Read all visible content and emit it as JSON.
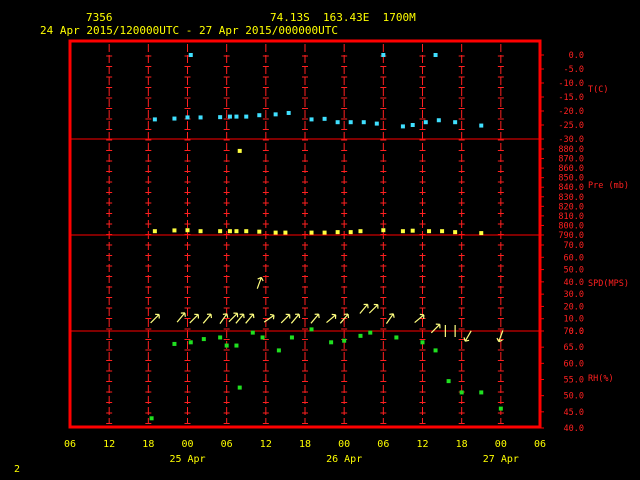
{
  "header": {
    "station_id": "7356",
    "location": "74.13S  163.43E  1700M",
    "period": "24 Apr 2015/120000UTC - 27 Apr 2015/000000UTC"
  },
  "page_number": "2",
  "colors": {
    "frame": "#ff0000",
    "grid": "#ff2020",
    "axis_text": "#ffff00",
    "temperature": "#40e0ff",
    "pressure": "#ffff40",
    "wind": "#ffff80",
    "humidity": "#20e020"
  },
  "chart_data": {
    "type": "scatter",
    "x_unit": "hours since 24 Apr 2015 06 UTC",
    "x_range": [
      0,
      72
    ],
    "x_tick_labels": [
      "06",
      "12",
      "18",
      "00",
      "06",
      "12",
      "18",
      "00",
      "06",
      "12",
      "18",
      "00",
      "06"
    ],
    "date_labels": [
      {
        "hour": 18,
        "text": "25 Apr"
      },
      {
        "hour": 42,
        "text": "26 Apr"
      },
      {
        "hour": 66,
        "text": "27 Apr"
      }
    ],
    "panels": [
      {
        "key": "temp",
        "label": "T(C)",
        "range": [
          -30,
          0
        ],
        "type": "scatter",
        "ticks": [
          "0.0",
          "-5.0",
          "-10.0",
          "-15.0",
          "-20.0",
          "-25.0",
          "-30.0"
        ],
        "points": [
          [
            13,
            -23
          ],
          [
            16,
            -22.7
          ],
          [
            18,
            -22.3
          ],
          [
            18.5,
            0
          ],
          [
            20,
            -22.3
          ],
          [
            23,
            -22.2
          ],
          [
            24.5,
            -22
          ],
          [
            25.5,
            -22
          ],
          [
            27,
            -22
          ],
          [
            29,
            -21.5
          ],
          [
            31.5,
            -21.2
          ],
          [
            33.5,
            -20.7
          ],
          [
            37,
            -23
          ],
          [
            39,
            -22.8
          ],
          [
            41,
            -24
          ],
          [
            43,
            -24
          ],
          [
            45,
            -24
          ],
          [
            47,
            -24.5
          ],
          [
            48,
            0
          ],
          [
            51,
            -25.5
          ],
          [
            52.5,
            -25
          ],
          [
            54.5,
            -24
          ],
          [
            56,
            0
          ],
          [
            56.5,
            -23.3
          ],
          [
            59,
            -24
          ],
          [
            63,
            -25.2
          ]
        ]
      },
      {
        "key": "pres",
        "label": "Pre (mb)",
        "range": [
          790,
          880
        ],
        "type": "scatter",
        "ticks": [
          "880.0",
          "870.0",
          "860.0",
          "850.0",
          "840.0",
          "830.0",
          "820.0",
          "810.0",
          "800.0",
          "790.0"
        ],
        "points": [
          [
            13,
            794
          ],
          [
            16,
            794.8
          ],
          [
            18,
            795
          ],
          [
            20,
            794
          ],
          [
            23,
            794
          ],
          [
            24.5,
            794
          ],
          [
            25.5,
            794
          ],
          [
            26,
            878
          ],
          [
            27,
            794
          ],
          [
            29,
            793.5
          ],
          [
            31.5,
            792.5
          ],
          [
            33,
            792.5
          ],
          [
            37,
            792.5
          ],
          [
            39,
            792.5
          ],
          [
            41,
            793
          ],
          [
            43,
            793
          ],
          [
            44.5,
            794
          ],
          [
            48,
            795
          ],
          [
            51,
            794
          ],
          [
            52.5,
            794.5
          ],
          [
            55,
            794
          ],
          [
            57,
            794
          ],
          [
            59,
            793
          ],
          [
            63,
            792
          ]
        ]
      },
      {
        "key": "wind",
        "label": "SPD(MPS)",
        "range": [
          0,
          70
        ],
        "type": "vector",
        "ticks": [
          "70.0",
          "60.0",
          "50.0",
          "40.0",
          "30.0",
          "20.0",
          "10.0",
          "0.0"
        ],
        "points": [
          [
            13,
            10,
            45
          ],
          [
            17,
            11,
            40
          ],
          [
            19,
            10,
            45
          ],
          [
            21,
            10,
            40
          ],
          [
            23.5,
            10,
            35
          ],
          [
            25,
            11,
            45
          ],
          [
            26,
            10,
            40
          ],
          [
            27.5,
            10,
            40
          ],
          [
            29,
            39,
            20
          ],
          [
            30.5,
            10,
            55
          ],
          [
            33,
            10,
            45
          ],
          [
            34.5,
            10,
            40
          ],
          [
            37.5,
            10,
            40
          ],
          [
            40,
            10,
            50
          ],
          [
            42,
            10,
            40
          ],
          [
            45,
            18,
            40
          ],
          [
            46.5,
            18,
            45
          ],
          [
            49,
            10,
            35
          ],
          [
            53.5,
            10,
            50
          ],
          [
            56,
            2,
            45
          ],
          [
            57.5,
            0,
            0
          ],
          [
            59,
            0,
            0
          ],
          [
            61,
            -1,
            210
          ],
          [
            66,
            -1,
            200
          ]
        ]
      },
      {
        "key": "rh",
        "label": "RH(%)",
        "range": [
          40,
          70
        ],
        "type": "scatter",
        "ticks": [
          "70.0",
          "65.0",
          "60.0",
          "55.0",
          "50.0",
          "45.0",
          "40.0"
        ],
        "points": [
          [
            12.5,
            43
          ],
          [
            16,
            66
          ],
          [
            18.5,
            66.5
          ],
          [
            20.5,
            67.5
          ],
          [
            23,
            68
          ],
          [
            24,
            65.5
          ],
          [
            25.5,
            65.5
          ],
          [
            26,
            52.5
          ],
          [
            28,
            69.5
          ],
          [
            29.5,
            68
          ],
          [
            32,
            64
          ],
          [
            34,
            68
          ],
          [
            37,
            70.5
          ],
          [
            40,
            66.5
          ],
          [
            42,
            67
          ],
          [
            44.5,
            68.5
          ],
          [
            46,
            69.5
          ],
          [
            50,
            68
          ],
          [
            54,
            66.5
          ],
          [
            56,
            64
          ],
          [
            58,
            54.5
          ],
          [
            60,
            51
          ],
          [
            63,
            51
          ],
          [
            66,
            46
          ]
        ]
      }
    ]
  }
}
